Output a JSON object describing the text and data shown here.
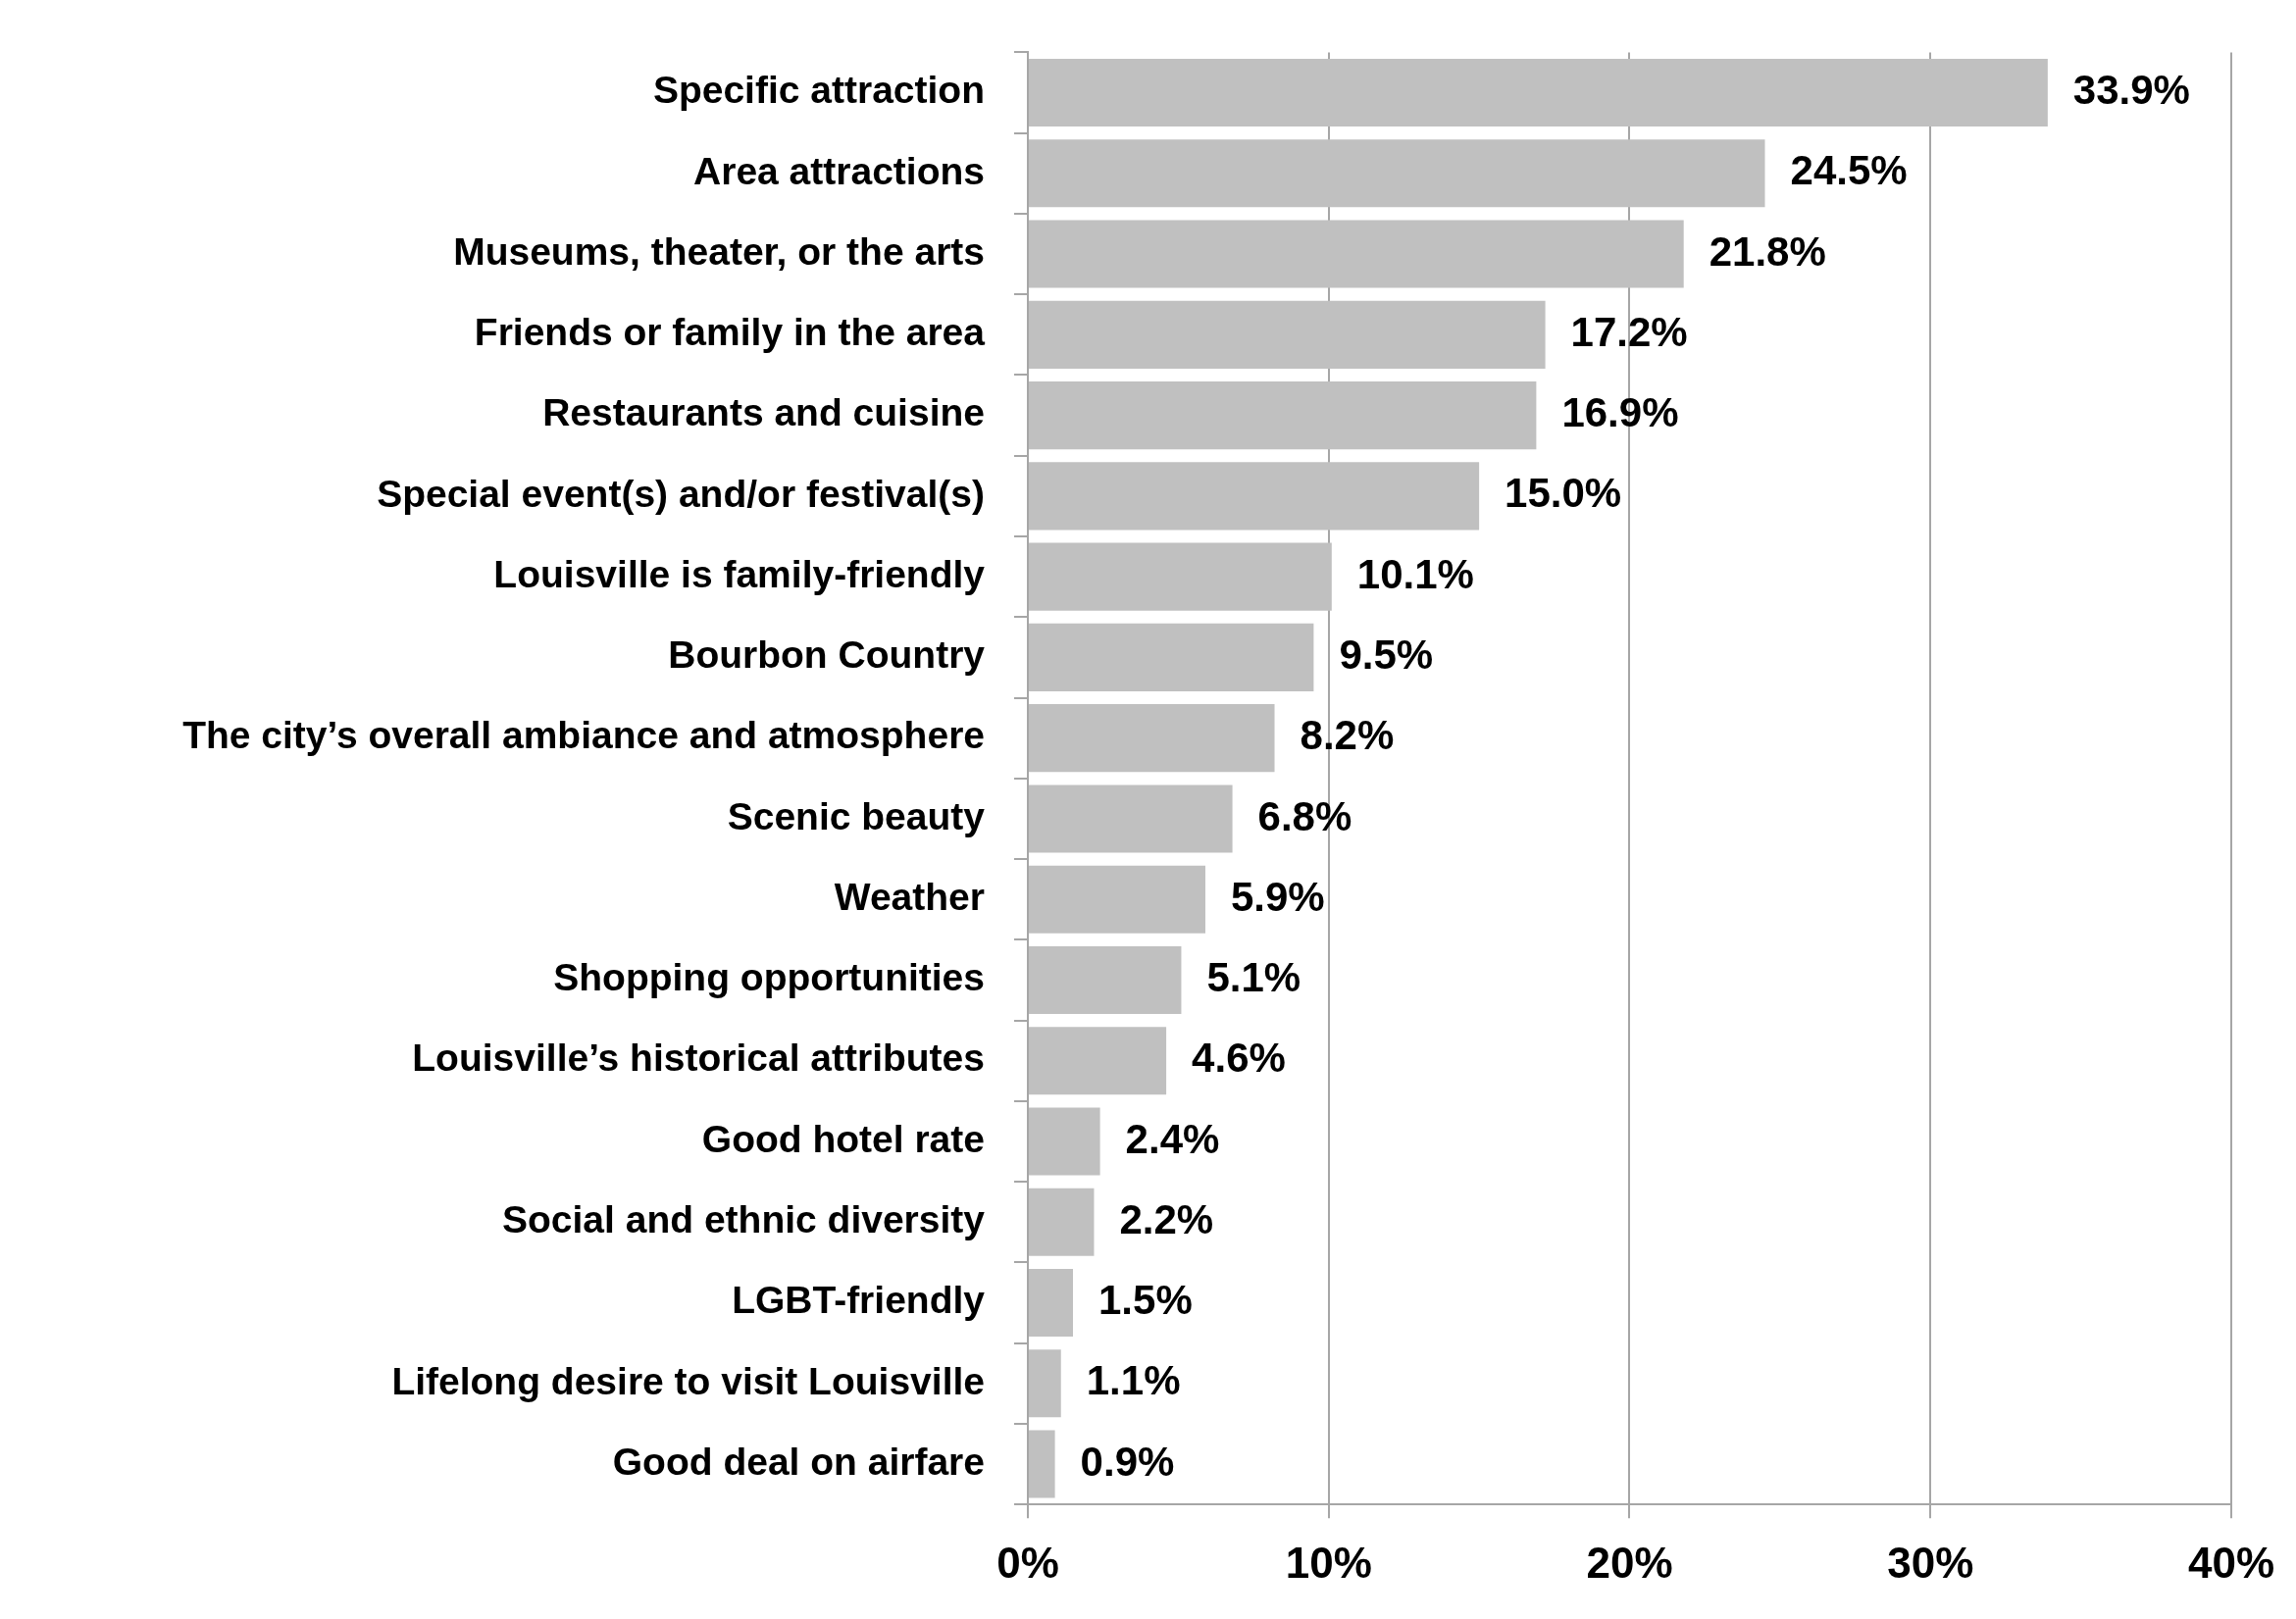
{
  "chart_data": {
    "type": "bar",
    "orientation": "horizontal",
    "categories": [
      "Specific attraction",
      "Area attractions",
      "Museums, theater, or the arts",
      "Friends or family in the area",
      "Restaurants and cuisine",
      "Special event(s) and/or festival(s)",
      "Louisville is family-friendly",
      "Bourbon Country",
      "The city’s overall ambiance and atmosphere",
      "Scenic beauty",
      "Weather",
      "Shopping opportunities",
      "Louisville’s historical attributes",
      "Good hotel rate",
      "Social and ethnic diversity",
      "LGBT-friendly",
      "Lifelong desire to visit Louisville",
      "Good deal on airfare"
    ],
    "values": [
      33.9,
      24.5,
      21.8,
      17.2,
      16.9,
      15.0,
      10.1,
      9.5,
      8.2,
      6.8,
      5.9,
      5.1,
      4.6,
      2.4,
      2.2,
      1.5,
      1.1,
      0.9
    ],
    "value_labels": [
      "33.9%",
      "24.5%",
      "21.8%",
      "17.2%",
      "16.9%",
      "15.0%",
      "10.1%",
      "9.5%",
      "8.2%",
      "6.8%",
      "5.9%",
      "5.1%",
      "4.6%",
      "2.4%",
      "2.2%",
      "1.5%",
      "1.1%",
      "0.9%"
    ],
    "color": "#c0c0c0",
    "xlim": [
      0,
      40
    ],
    "xticks": [
      {
        "value": 0,
        "label": "0%"
      },
      {
        "value": 10,
        "label": "10%"
      },
      {
        "value": 20,
        "label": "20%"
      },
      {
        "value": 30,
        "label": "30%"
      },
      {
        "value": 40,
        "label": "40%"
      }
    ],
    "grid": "x"
  }
}
